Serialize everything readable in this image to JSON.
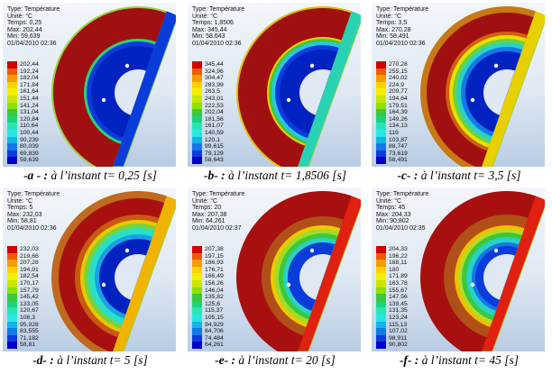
{
  "colormap": [
    "#d40000",
    "#f05a00",
    "#f59c00",
    "#ffd100",
    "#f0f000",
    "#c8e600",
    "#8ee000",
    "#3cc83c",
    "#1ed27a",
    "#28e6b4",
    "#28e6e6",
    "#14b4e6",
    "#1478e6",
    "#0a3cdc",
    "#0000c8"
  ],
  "panels": [
    {
      "letter": "-a - :",
      "caption": " à l’instant t= 0,25 [s]",
      "type": "Type: Température",
      "unit": "Unité: °C",
      "time": "Temps: 0,25",
      "max": "Max: 202,44",
      "min": "Min: 59,639",
      "date": "01/04/2010 02:36",
      "legend": [
        "202,44",
        "192,24",
        "182,04",
        "171,84",
        "161,64",
        "151,44",
        "141,24",
        "131,04",
        "120,84",
        "110,64",
        "100,44",
        "90,239",
        "80,039",
        "69,839",
        "59,639"
      ]
    },
    {
      "letter": "-b- :",
      "caption": " à l’instant t= 1,8506 [s]",
      "type": "Type: Température",
      "unit": "Unité: °C",
      "time": "Temps: 1,8506",
      "max": "Max: 345,44",
      "min": "Min: 58,643",
      "date": "01/04/2010 02:36",
      "legend": [
        "345,44",
        "324,96",
        "304,47",
        "283,99",
        "263,5",
        "243,01",
        "222,53",
        "202,04",
        "181,56",
        "161,07",
        "140,59",
        "120,1",
        "99,615",
        "79,129",
        "58,643"
      ]
    },
    {
      "letter": "-c- :",
      "caption": " à l’instant t= 3,5 [s]",
      "type": "Type: Température",
      "unit": "Unité: °C",
      "time": "Temps: 3,5",
      "max": "Max: 270,28",
      "min": "Min: 58,491",
      "date": "01/04/2010 02:36",
      "legend": [
        "270,28",
        "255,15",
        "240,02",
        "224,9",
        "209,77",
        "194,64",
        "179,51",
        "164,39",
        "149,26",
        "134,13",
        "119",
        "103,87",
        "88,747",
        "73,619",
        "58,491"
      ]
    },
    {
      "letter": "-d- :",
      "caption": " à  l’instant t= 5 [s]",
      "type": "Type: Température",
      "unit": "Unité: °C",
      "time": "Temps: 5",
      "max": "Max: 232,03",
      "min": "Min: 58,81",
      "date": "01/04/2010 02:36",
      "legend": [
        "232,03",
        "219,66",
        "207,28",
        "194,91",
        "182,54",
        "170,17",
        "157,79",
        "145,42",
        "133,05",
        "120,67",
        "108,3",
        "95,928",
        "83,555",
        "71,182",
        "58,81"
      ]
    },
    {
      "letter": "-e- :",
      "caption": " à  l’instant  t= 20  [s]",
      "type": "Type: Température",
      "unit": "Unité: °C",
      "time": "Temps: 20",
      "max": "Max: 207,38",
      "min": "Min: 64,261",
      "date": "01/04/2010 02:37",
      "legend": [
        "207,38",
        "197,15",
        "186,93",
        "176,71",
        "166,49",
        "156,26",
        "146,04",
        "135,82",
        "125,6",
        "115,37",
        "105,15",
        "94,929",
        "84,706",
        "74,484",
        "64,261"
      ]
    },
    {
      "letter": "-f- :",
      "caption": " à  l’instant  t= 45 [s]",
      "type": "Type: Température",
      "unit": "Unité: °C",
      "time": "Temps: 45",
      "max": "Max: 204,33",
      "min": "Min: 90,802",
      "date": "01/04/2010 02:35",
      "legend": [
        "204,33",
        "196,22",
        "188,11",
        "180",
        "171,89",
        "163,78",
        "155,67",
        "147,56",
        "139,45",
        "131,35",
        "123,24",
        "115,13",
        "107,02",
        "98,911",
        "90,802"
      ]
    }
  ]
}
